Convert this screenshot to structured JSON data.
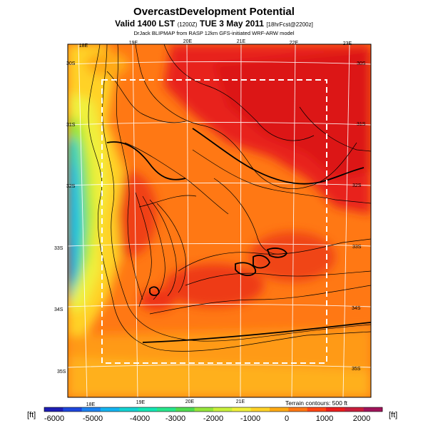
{
  "header": {
    "title": "OvercastDevelopment Potential",
    "valid": "Valid 1400 LST",
    "valid_utc": "(1200Z)",
    "date": "TUE 3 May 2011",
    "forecast": "[18hrFcst@2200z]",
    "credit": "DrJack BLIPMAP from RASP 12km GFS-initiated WRF-ARW model"
  },
  "map": {
    "top_lon_labels": [
      "18E",
      "19E",
      "20E",
      "21E",
      "22E",
      "23E"
    ],
    "bottom_lon_labels": [
      "18E",
      "19E",
      "20E",
      "21E"
    ],
    "left_lat_labels": [
      "30S",
      "31S",
      "32S",
      "33S",
      "34S",
      "35S"
    ],
    "right_lat_labels": [
      "30S",
      "31S",
      "32S",
      "33S",
      "34S",
      "35S"
    ]
  },
  "legend": {
    "unit_left": "[ft]",
    "unit_right": "[ft]",
    "terrain_note": "Terrain contours: 500 ft",
    "tick_labels": [
      "-6000",
      "-5000",
      "-4000",
      "-3000",
      "-2000",
      "-1000",
      "0",
      "1000",
      "2000"
    ],
    "colors": [
      "#1e1eb4",
      "#1e46dc",
      "#1e82f0",
      "#14b4f0",
      "#14d2d2",
      "#14e6b4",
      "#28e68c",
      "#50dc50",
      "#96e63c",
      "#c8f03c",
      "#f0f03c",
      "#ffd228",
      "#ffaa14",
      "#ff7814",
      "#ff4614",
      "#eb1e1e",
      "#c81e3c",
      "#a0145a"
    ]
  }
}
